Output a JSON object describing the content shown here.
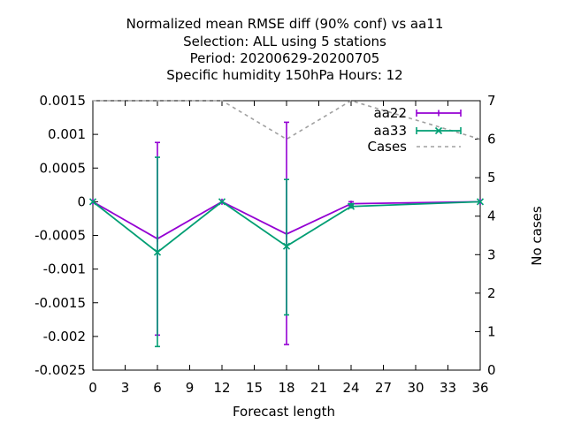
{
  "title_lines": [
    "Normalized mean RMSE diff (90% conf) vs aa11",
    "Selection: ALL using     5 stations",
    "Period: 20200629-20200705",
    "Specific humidity 150hPa   Hours:  12"
  ],
  "xlabel": "Forecast length",
  "y2label": "No cases",
  "colors": {
    "aa22": "#9400d3",
    "aa33": "#009e73",
    "cases": "#a0a0a0"
  },
  "chart_data": {
    "type": "line",
    "title": "Normalized mean RMSE diff (90% conf) vs aa11",
    "subtitle": [
      "Selection: ALL using     5 stations",
      "Period: 20200629-20200705",
      "Specific humidity 150hPa   Hours:  12"
    ],
    "xlabel": "Forecast length",
    "ylabel": "",
    "y2label": "No cases",
    "xlim": [
      0,
      36
    ],
    "ylim": [
      -0.0025,
      0.0015
    ],
    "y2lim": [
      0,
      7
    ],
    "xticks": [
      "0",
      "3",
      "6",
      "9",
      "12",
      "15",
      "18",
      "21",
      "24",
      "27",
      "30",
      "33",
      "36"
    ],
    "yticks": [
      "0.0015",
      "0.001",
      "0.0005",
      "0",
      "-0.0005",
      "-0.001",
      "-0.0015",
      "-0.002",
      "-0.0025"
    ],
    "y2ticks": [
      "7",
      "6",
      "5",
      "4",
      "3",
      "2",
      "1",
      "0"
    ],
    "legend_position": "top-right",
    "grid": false,
    "series": [
      {
        "name": "aa22",
        "axis": "y",
        "errorbars": true,
        "x": [
          0,
          6,
          12,
          18,
          24,
          36
        ],
        "y": [
          0.0,
          -0.00055,
          0.0,
          -0.00048,
          -3e-05,
          0.0
        ],
        "err_low": [
          0.0,
          -0.00198,
          0.0,
          -0.00212,
          -6e-05,
          0.0
        ],
        "err_high": [
          0.0,
          0.00088,
          0.0,
          0.00118,
          0.0,
          0.0
        ]
      },
      {
        "name": "aa33",
        "axis": "y",
        "errorbars": true,
        "x": [
          0,
          6,
          12,
          18,
          24,
          36
        ],
        "y": [
          0.0,
          -0.00075,
          0.0,
          -0.00066,
          -7e-05,
          0.0
        ],
        "err_low": [
          0.0,
          -0.00215,
          0.0,
          -0.00168,
          -9e-05,
          0.0
        ],
        "err_high": [
          0.0,
          0.00066,
          0.0,
          0.00033,
          -3e-05,
          0.0
        ]
      },
      {
        "name": "Cases",
        "axis": "y2",
        "errorbars": false,
        "x": [
          0,
          6,
          12,
          18,
          24,
          36
        ],
        "y": [
          7,
          7,
          7,
          6,
          7,
          6
        ]
      }
    ]
  }
}
